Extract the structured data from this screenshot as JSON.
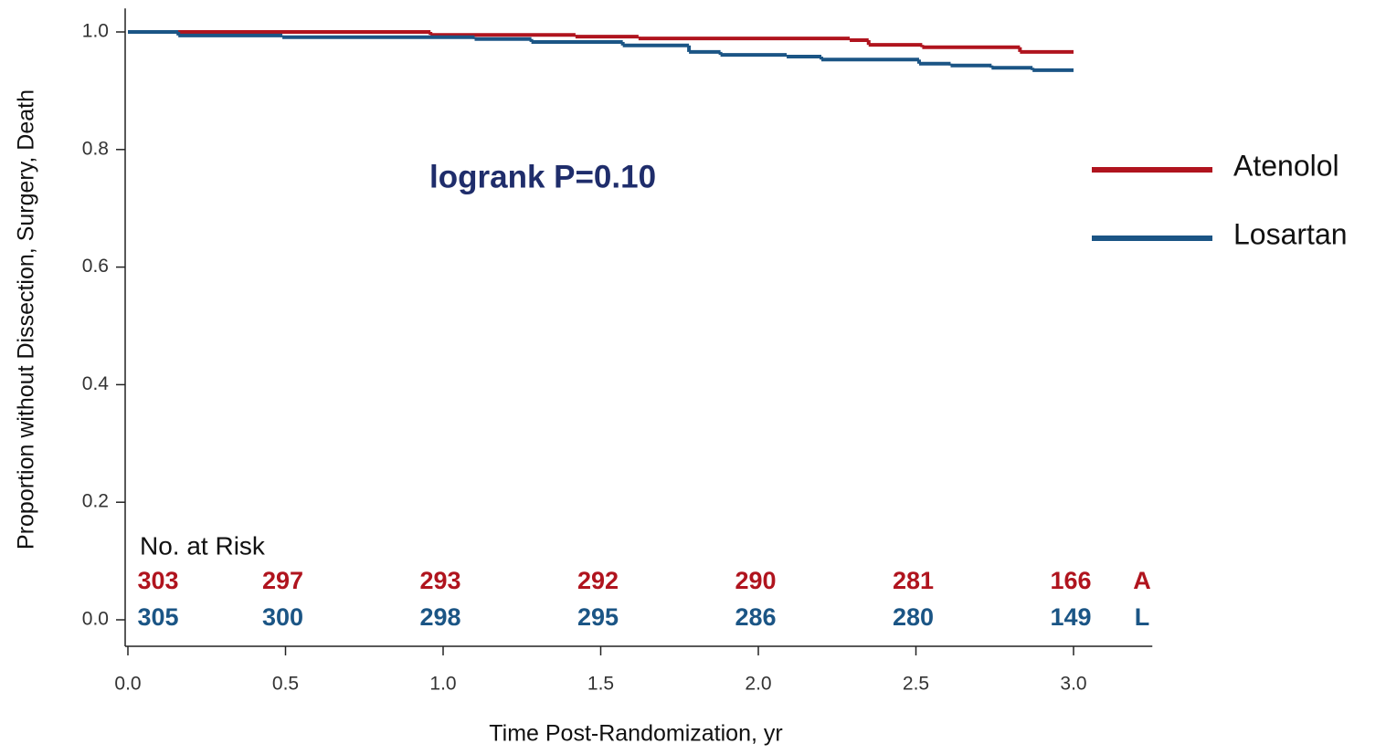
{
  "chart_data": {
    "type": "step",
    "y_label": "Proportion without Dissection, Surgery, Death",
    "x_label": "Time Post-Randomization, yr",
    "annotation": "logrank P=0.10",
    "xlim": [
      0,
      3.25
    ],
    "ylim": [
      -0.045,
      1.04
    ],
    "xticks": [
      {
        "value": 0,
        "label": "0.0"
      },
      0.5,
      {
        "value": 1,
        "label": "1.0"
      },
      1.5,
      {
        "value": 2,
        "label": "2.0"
      },
      2.5,
      {
        "value": 3,
        "label": "3.0"
      }
    ],
    "yticks": [
      {
        "value": 0,
        "label": "0.0"
      },
      0.2,
      0.4,
      0.6,
      0.8,
      {
        "value": 1,
        "label": "1.0"
      }
    ],
    "series": [
      {
        "name": "Atenolol",
        "color": "#b0141e",
        "x": [
          0,
          0.96,
          1.42,
          1.62,
          2.29,
          2.35,
          2.52,
          2.83,
          3.0
        ],
        "values": [
          1.0,
          0.995,
          0.992,
          0.989,
          0.986,
          0.978,
          0.974,
          0.966,
          0.966
        ]
      },
      {
        "name": "Losartan",
        "color": "#1b5585",
        "x": [
          0,
          0.16,
          0.49,
          1.1,
          1.28,
          1.57,
          1.78,
          1.88,
          2.09,
          2.2,
          2.51,
          2.61,
          2.74,
          2.87,
          3.0
        ],
        "values": [
          1.0,
          0.994,
          0.991,
          0.988,
          0.983,
          0.977,
          0.966,
          0.961,
          0.958,
          0.953,
          0.946,
          0.943,
          0.939,
          0.935,
          0.935
        ]
      }
    ],
    "risk_table": {
      "title": "No. at Risk",
      "rows": [
        {
          "label": "A",
          "color": "#b0141e",
          "values": [
            303,
            297,
            293,
            292,
            290,
            281,
            166
          ]
        },
        {
          "label": "L",
          "color": "#1b5585",
          "values": [
            305,
            300,
            298,
            295,
            286,
            280,
            149
          ]
        }
      ]
    }
  }
}
